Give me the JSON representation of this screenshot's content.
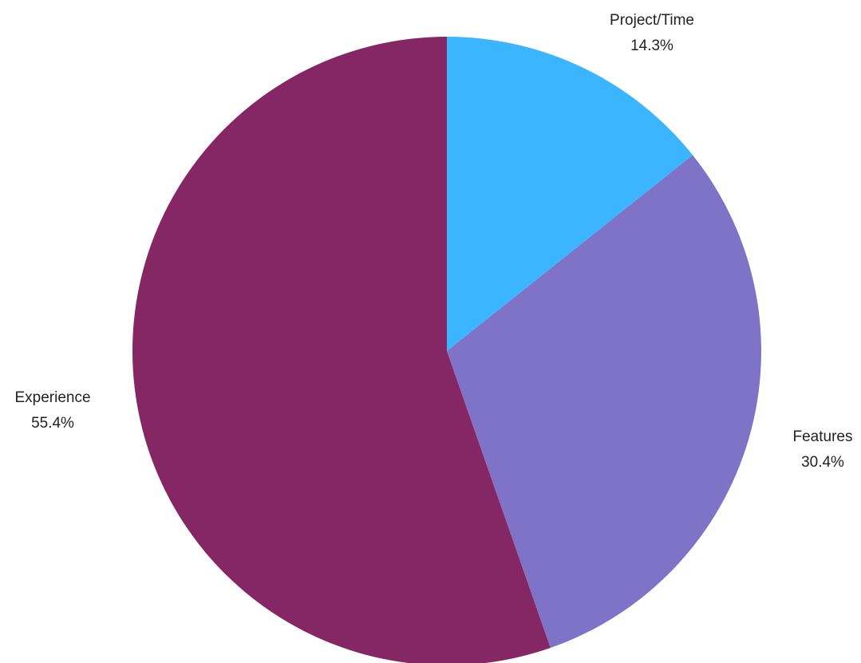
{
  "chart_data": {
    "type": "pie",
    "title": "",
    "slices": [
      {
        "label": "Project/Time",
        "value": 14.3,
        "display": "14.3%",
        "color": "#3bb5ff"
      },
      {
        "label": "Features",
        "value": 30.4,
        "display": "30.4%",
        "color": "#7f73c8"
      },
      {
        "label": "Experience",
        "value": 55.4,
        "display": "55.4%",
        "color": "#862765"
      }
    ],
    "start_angle_deg": 0,
    "direction": "clockwise",
    "labels_outside": true
  }
}
